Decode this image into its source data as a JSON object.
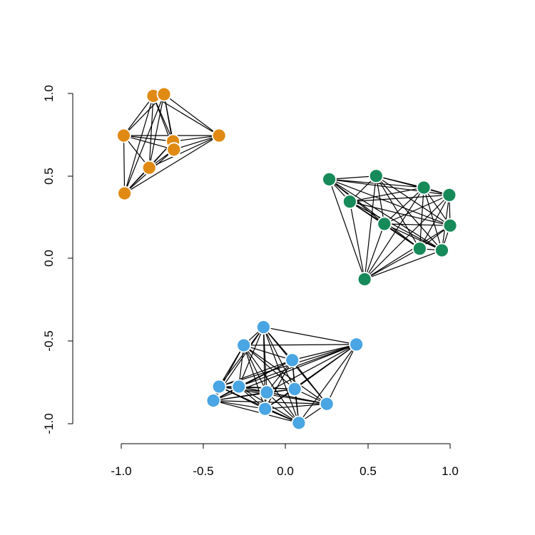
{
  "chart_data": {
    "type": "scatter",
    "title": "",
    "xlabel": "",
    "ylabel": "",
    "xlim": [
      -1.0,
      1.0
    ],
    "ylim": [
      -1.0,
      1.0
    ],
    "grid": false,
    "x_ticks": [
      "-1.0",
      "-0.5",
      "0.0",
      "0.5",
      "1.0"
    ],
    "y_ticks": [
      "-1.0",
      "-0.5",
      "0.0",
      "0.5",
      "1.0"
    ],
    "colors": {
      "orange": "#e08a13",
      "green": "#178a5a",
      "blue": "#49a5e3",
      "edge": "#000000",
      "node_outline": "#ffffff"
    },
    "series": [
      {
        "color": "orange",
        "x": [
          -0.805,
          -0.74,
          -0.985,
          -0.685,
          -0.68,
          -0.83,
          -0.98,
          -0.405
        ],
        "y": [
          0.985,
          0.995,
          0.745,
          0.71,
          0.66,
          0.55,
          0.395,
          0.745
        ]
      },
      {
        "color": "green",
        "x": [
          0.265,
          0.39,
          0.55,
          0.6,
          0.84,
          0.995,
          1.0,
          0.815,
          0.95,
          0.48
        ],
        "y": [
          0.48,
          0.345,
          0.5,
          0.21,
          0.43,
          0.385,
          0.2,
          0.06,
          0.05,
          -0.125
        ]
      },
      {
        "color": "blue",
        "x": [
          -0.135,
          -0.255,
          0.04,
          0.43,
          -0.405,
          -0.285,
          -0.115,
          0.055,
          -0.44,
          -0.125,
          0.25,
          0.08
        ],
        "y": [
          -0.415,
          -0.525,
          -0.615,
          -0.52,
          -0.775,
          -0.775,
          -0.81,
          -0.79,
          -0.86,
          -0.91,
          -0.88,
          -0.995
        ]
      }
    ]
  }
}
